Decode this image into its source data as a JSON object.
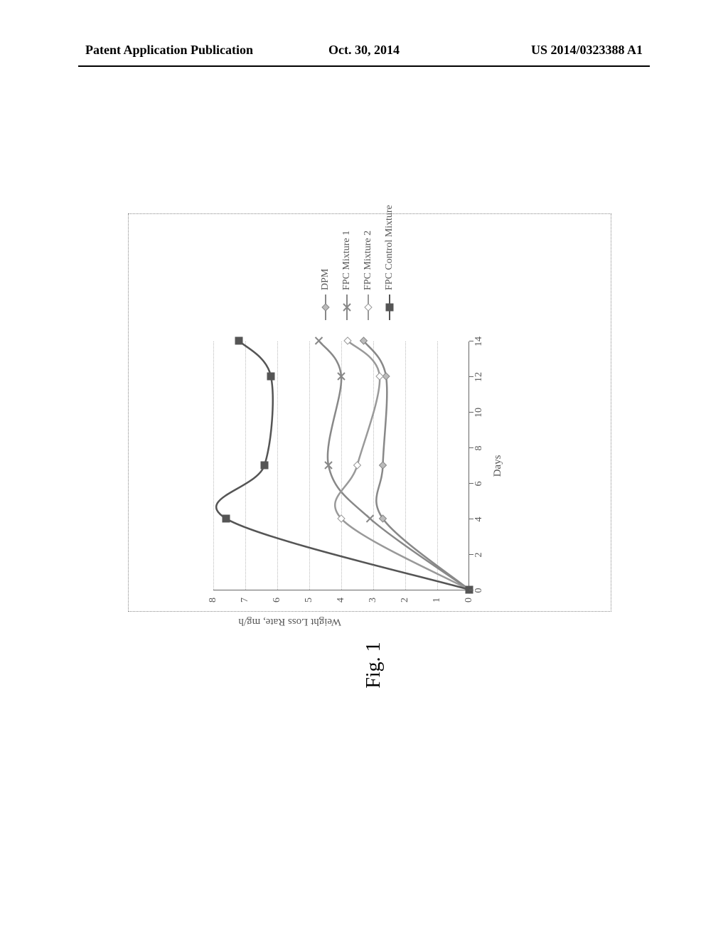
{
  "header": {
    "left": "Patent Application Publication",
    "center": "Oct. 30, 2014",
    "right": "US 2014/0323388 A1"
  },
  "figure": {
    "caption": "Fig. 1",
    "chart": {
      "type": "line",
      "xlabel": "Days",
      "ylabel": "Weight Loss Rate, mg/h",
      "xlim": [
        0,
        14
      ],
      "ylim": [
        0,
        8
      ],
      "xtick_step": 2,
      "ytick_step": 1,
      "background_color": "#ffffff",
      "grid_color": "#bbbbbb",
      "axis_color": "#666666",
      "label_fontsize": 15,
      "tick_fontsize": 14,
      "line_width": 2.5,
      "series": [
        {
          "name": "DPM",
          "marker": "diamond",
          "color": "#888888",
          "marker_fill": "#bbbbbb",
          "x": [
            0,
            4,
            7,
            12,
            14
          ],
          "y": [
            0,
            2.7,
            2.7,
            2.6,
            3.3
          ]
        },
        {
          "name": "FPC Mixture 1",
          "marker": "x",
          "color": "#888888",
          "marker_fill": "#888888",
          "x": [
            0,
            4,
            7,
            12,
            14
          ],
          "y": [
            0,
            3.1,
            4.4,
            4.0,
            4.7
          ]
        },
        {
          "name": "FPC Mixture 2",
          "marker": "diamond-open",
          "color": "#999999",
          "marker_fill": "#cccccc",
          "x": [
            0,
            4,
            7,
            12,
            14
          ],
          "y": [
            0,
            4.0,
            3.5,
            2.8,
            3.8
          ]
        },
        {
          "name": "FPC Control Mixture",
          "marker": "square",
          "color": "#555555",
          "marker_fill": "#555555",
          "x": [
            0,
            4,
            7,
            12,
            14
          ],
          "y": [
            0,
            7.6,
            6.4,
            6.2,
            7.2
          ]
        }
      ],
      "legend_position": "right"
    }
  }
}
